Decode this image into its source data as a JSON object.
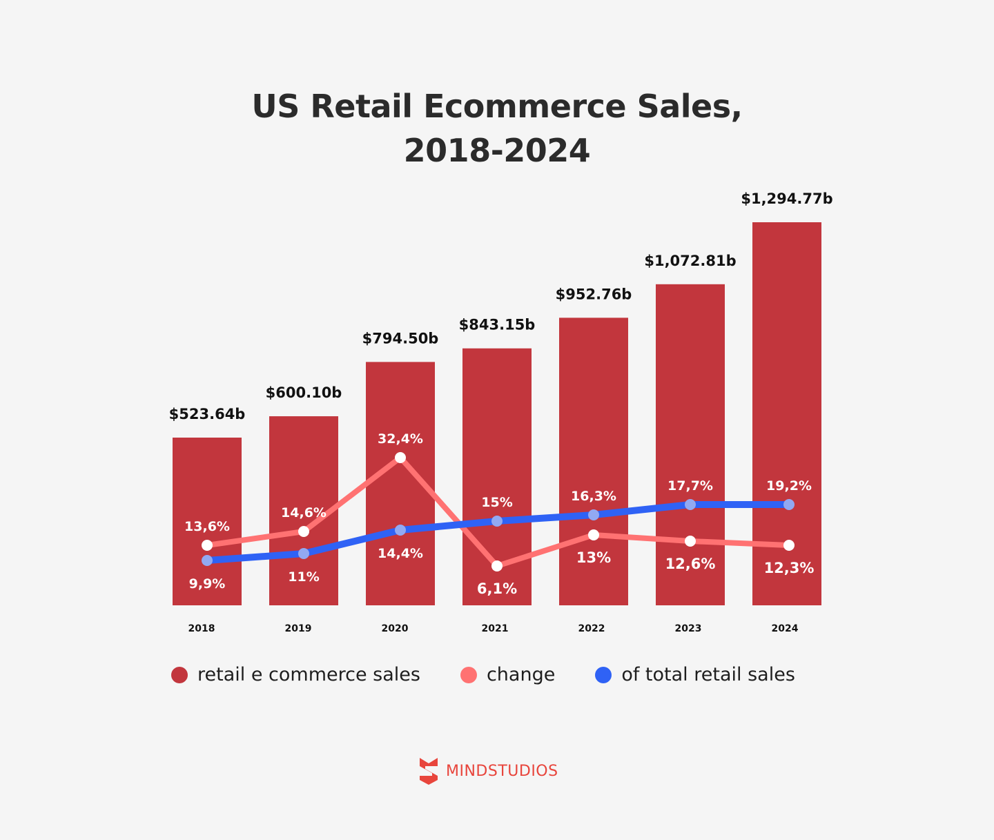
{
  "title_line1": "US Retail Ecommerce Sales,",
  "title_line2": "2018-2024",
  "colors": {
    "bars": "#c2363d",
    "change": "#ff7272",
    "total_share": "#2f62f5",
    "total_marker": "#92a9f2",
    "background": "#f5f5f5",
    "logo": "#e8453c"
  },
  "chart_data": {
    "type": "bar",
    "title": "US Retail Ecommerce Sales, 2018-2024",
    "categories": [
      "2018",
      "2019",
      "2020",
      "2021",
      "2022",
      "2023",
      "2024"
    ],
    "series": [
      {
        "name": "retail e commerce sales",
        "type": "bar",
        "unit": "billion USD",
        "values": [
          523.64,
          600.1,
          794.5,
          843.15,
          952.76,
          1072.81,
          1294.77
        ],
        "labels": [
          "$523.64b",
          "$600.10b",
          "$794.50b",
          "$843.15b",
          "$952.76b",
          "$1,072.81b",
          "$1,294.77b"
        ]
      },
      {
        "name": "change",
        "type": "line",
        "unit": "%",
        "values": [
          13.6,
          14.6,
          32.4,
          6.1,
          13.0,
          12.6,
          12.3
        ],
        "labels": [
          "13,6%",
          "14,6%",
          "32,4%",
          "6,1%",
          "13%",
          "12,6%",
          "12,3%"
        ]
      },
      {
        "name": "of total retail sales",
        "type": "line",
        "unit": "%",
        "values": [
          9.9,
          11.0,
          14.4,
          15.0,
          16.3,
          17.7,
          19.2
        ],
        "labels": [
          "9,9%",
          "11%",
          "14,4%",
          "15%",
          "16,3%",
          "17,7%",
          "19,2%"
        ]
      }
    ],
    "xlabel": "",
    "ylabel": "",
    "grid": false,
    "legend_position": "bottom"
  },
  "legend": [
    "retail e commerce sales",
    "change",
    "of total retail sales"
  ],
  "logo": {
    "text": "MINDSTUDIOS"
  }
}
